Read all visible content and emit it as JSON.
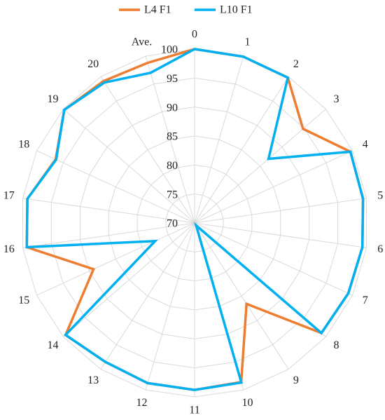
{
  "chart_data": {
    "type": "radar",
    "categories": [
      "0",
      "1",
      "2",
      "3",
      "4",
      "5",
      "6",
      "7",
      "8",
      "9",
      "10",
      "11",
      "12",
      "13",
      "14",
      "15",
      "16",
      "17",
      "18",
      "19",
      "20",
      "Ave."
    ],
    "series": [
      {
        "name": "L4 F1",
        "color": "#ed7d31",
        "values": [
          100,
          99.9,
          99.8,
          94.8,
          99.6,
          99.4,
          99.3,
          99.2,
          99,
          86.6,
          98.6,
          98.8,
          98.8,
          98.5,
          99.5,
          89.2,
          99.3,
          99.2,
          96.4,
          99.8,
          99.1,
          98.8
        ]
      },
      {
        "name": "L10 F1",
        "color": "#00b0f0",
        "values": [
          100,
          99.9,
          99.8,
          86.9,
          99.6,
          99.4,
          99.3,
          99.2,
          99,
          70.5,
          98.7,
          98.8,
          98.8,
          98.5,
          99.5,
          77.5,
          99.3,
          99.2,
          96.3,
          99.8,
          98.8,
          97
        ]
      }
    ],
    "rlim": [
      70,
      100
    ],
    "rticks": [
      70,
      75,
      80,
      85,
      90,
      95,
      100
    ],
    "grid": true,
    "legend": "top"
  }
}
